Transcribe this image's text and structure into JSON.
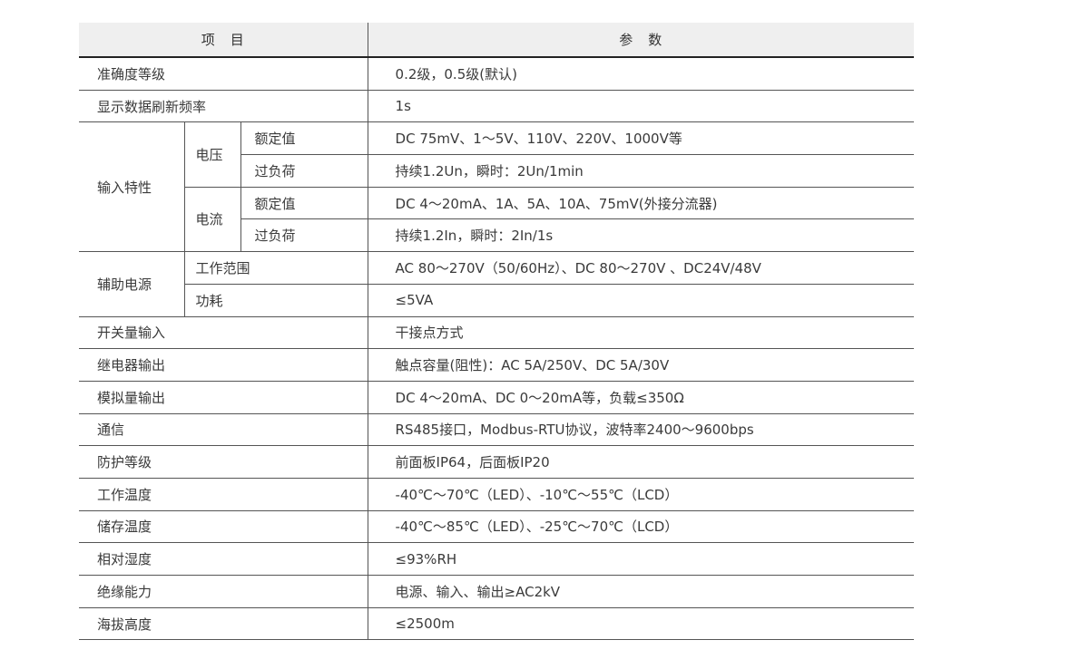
{
  "header": {
    "item": "项　目",
    "param": "参　数"
  },
  "rows": {
    "accuracy": {
      "label": "准确度等级",
      "value": "0.2级，0.5级(默认)"
    },
    "refresh": {
      "label": "显示数据刷新频率",
      "value": "1s"
    },
    "input": {
      "label": "输入特性",
      "voltage": {
        "label": "电压",
        "rated_label": "额定值",
        "rated": "DC 75mV、1～5V、110V、220V、1000V等",
        "overload_label": "过负荷",
        "overload": "持续1.2Un，瞬时：2Un/1min"
      },
      "current": {
        "label": "电流",
        "rated_label": "额定值",
        "rated": "DC 4～20mA、1A、5A、10A、75mV(外接分流器)",
        "overload_label": "过负荷",
        "overload": "持续1.2In，瞬时：2In/1s"
      }
    },
    "aux": {
      "label": "辅助电源",
      "range_label": "工作范围",
      "range": "AC 80～270V（50/60Hz）、DC  80～270V 、DC24V/48V",
      "power_label": "功耗",
      "power": "≤5VA"
    },
    "list": [
      {
        "label": "开关量输入",
        "value": "干接点方式"
      },
      {
        "label": "继电器输出",
        "value": "触点容量(阻性)：AC 5A/250V、DC 5A/30V"
      },
      {
        "label": "模拟量输出",
        "value": "DC 4～20mA、DC 0～20mA等，负载≤350Ω"
      },
      {
        "label": "通信",
        "value": "RS485接口，Modbus-RTU协议，波特率2400～9600bps"
      },
      {
        "label": "防护等级",
        "value": "前面板IP64，后面板IP20"
      },
      {
        "label": "工作温度",
        "value": "-40℃～70℃（LED）、-10℃～55℃（LCD）"
      },
      {
        "label": "储存温度",
        "value": "-40℃～85℃（LED）、-25℃～70℃（LCD）"
      },
      {
        "label": "相对湿度",
        "value": "≤93%RH"
      },
      {
        "label": "绝缘能力",
        "value": "电源、输入、输出≥AC2kV"
      },
      {
        "label": "海拔高度",
        "value": "≤2500m"
      }
    ]
  }
}
